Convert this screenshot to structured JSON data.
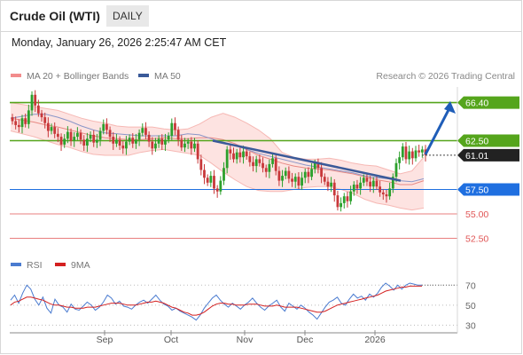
{
  "header": {
    "title": "Crude Oil (WTI)",
    "timeframe": "DAILY",
    "datetime": "Monday, January 26, 2026 2:25:47 AM CET"
  },
  "legend": {
    "bollinger_label": "MA 20 + Bollinger Bands",
    "bollinger_color": "#f28c8c",
    "ma50_label": "MA 50",
    "ma50_color": "#3a5a99",
    "copyright": "Research © 2026 Trading Central"
  },
  "rsi_legend": {
    "rsi_label": "RSI",
    "rsi_color": "#4a7bd0",
    "ma_label": "9MA",
    "ma_color": "#d42020"
  },
  "chart_data": [
    {
      "type": "candlestick",
      "title": "Crude Oil (WTI)",
      "y_range": [
        51.0,
        68.0
      ],
      "x_tick_labels": [
        "Sep",
        "Oct",
        "Nov",
        "Dec",
        "2026"
      ],
      "levels": [
        {
          "value": 66.4,
          "label": "66.40",
          "kind": "resistance",
          "color": "#55a51c"
        },
        {
          "value": 62.5,
          "label": "62.50",
          "kind": "resistance",
          "color": "#55a51c"
        },
        {
          "value": 61.01,
          "label": "61.01",
          "kind": "last-price",
          "color": "#222222"
        },
        {
          "value": 57.5,
          "label": "57.50",
          "kind": "pivot",
          "color": "#1f6fe0"
        },
        {
          "value": 55.0,
          "label": "55.00",
          "kind": "support",
          "color": "#e05555"
        },
        {
          "value": 52.5,
          "label": "52.50",
          "kind": "support",
          "color": "#e05555"
        }
      ],
      "candles": [
        64.5,
        64.1,
        63.9,
        64.8,
        64.2,
        65.6,
        67.2,
        66.1,
        65.3,
        64.9,
        64.3,
        63.5,
        63.9,
        63.2,
        62.9,
        62.1,
        62.7,
        63.4,
        62.5,
        62.9,
        63.3,
        62.6,
        62.0,
        62.7,
        63.1,
        62.3,
        62.6,
        63.5,
        64.2,
        63.6,
        62.9,
        62.2,
        62.6,
        62.0,
        61.7,
        62.4,
        62.8,
        62.2,
        62.6,
        63.3,
        63.8,
        63.1,
        62.4,
        61.7,
        62.2,
        62.7,
        62.1,
        62.6,
        63.0,
        64.3,
        63.6,
        62.6,
        61.8,
        62.2,
        62.4,
        61.7,
        62.2,
        60.6,
        59.5,
        58.7,
        58.2,
        58.9,
        57.6,
        57.3,
        58.4,
        59.7,
        61.6,
        61.2,
        60.6,
        61.3,
        60.8,
        61.4,
        60.9,
        60.3,
        59.9,
        60.6,
        60.2,
        59.7,
        59.3,
        60.1,
        60.7,
        59.4,
        58.4,
        58.9,
        59.4,
        58.6,
        58.3,
        58.8,
        57.9,
        58.7,
        59.3,
        58.8,
        59.6,
        60.2,
        59.7,
        58.8,
        58.3,
        57.8,
        58.2,
        56.9,
        55.7,
        56.1,
        56.8,
        56.3,
        57.3,
        58.0,
        57.6,
        58.2,
        58.7,
        58.3,
        57.8,
        58.4,
        57.8,
        57.2,
        57.0,
        56.8,
        57.6,
        58.8,
        60.2,
        60.8,
        61.9,
        60.6,
        61.4,
        60.7,
        61.5,
        61.3,
        61.6,
        61.01
      ],
      "ma20_upper": [
        66.4,
        66.2,
        66.0,
        65.8,
        65.6,
        65.2,
        64.8,
        64.5,
        64.3,
        64.0,
        63.9,
        63.9,
        63.9,
        63.7,
        63.6,
        63.7,
        64.2,
        64.9,
        65.3,
        64.9,
        64.3,
        63.6,
        62.7,
        61.3,
        60.8,
        60.6,
        60.6,
        60.7,
        60.5,
        60.2,
        60.0,
        59.9,
        59.5,
        59.1,
        59.4,
        60.8
      ],
      "ma20_mid": [
        64.8,
        64.6,
        64.4,
        64.1,
        63.9,
        63.6,
        63.3,
        63.0,
        62.8,
        62.7,
        62.6,
        62.6,
        62.7,
        62.8,
        62.7,
        62.7,
        62.8,
        62.8,
        62.6,
        62.2,
        61.6,
        61.0,
        60.6,
        60.2,
        59.9,
        59.7,
        59.6,
        59.5,
        59.3,
        59.1,
        58.8,
        58.5,
        58.3,
        58.0,
        58.0,
        58.4
      ],
      "ma20_lower": [
        63.5,
        63.2,
        62.9,
        62.5,
        62.1,
        61.8,
        61.4,
        61.1,
        61.0,
        61.0,
        61.0,
        61.3,
        61.5,
        61.6,
        61.4,
        61.2,
        61.0,
        60.2,
        59.3,
        58.5,
        57.8,
        57.4,
        57.3,
        57.3,
        57.5,
        57.7,
        57.8,
        57.8,
        57.5,
        57.1,
        56.5,
        56.1,
        55.9,
        55.6,
        55.4,
        55.6
      ],
      "ma50": [
        64.8,
        65.0,
        65.2,
        65.2,
        64.9,
        64.5,
        64.0,
        63.6,
        63.3,
        63.2,
        63.1,
        63.0,
        63.0,
        63.0,
        63.0,
        63.2,
        63.1,
        62.7,
        62.3,
        62.0,
        61.6,
        61.2,
        60.9,
        60.6,
        60.3,
        60.0,
        59.8,
        59.6,
        59.4,
        59.2,
        58.9,
        58.7,
        58.6,
        58.4,
        58.3,
        58.6
      ],
      "trendline": {
        "from": 62.5,
        "to": 58.4
      },
      "forecast_arrow": {
        "from": 61.1,
        "to": 66.0
      }
    },
    {
      "type": "line",
      "title": "RSI",
      "y_range": [
        25,
        80
      ],
      "y_tick_labels": [
        "70",
        "50",
        "30"
      ],
      "series": [
        {
          "name": "RSI",
          "values": [
            55,
            60,
            52,
            62,
            70,
            66,
            56,
            50,
            58,
            47,
            42,
            56,
            50,
            48,
            43,
            51,
            46,
            45,
            49,
            53,
            50,
            45,
            48,
            53,
            60,
            57,
            51,
            54,
            49,
            48,
            46,
            50,
            53,
            55,
            52,
            56,
            60,
            55,
            51,
            49,
            45,
            47,
            44,
            42,
            40,
            38,
            35,
            40,
            47,
            52,
            57,
            60,
            55,
            51,
            48,
            52,
            49,
            46,
            50,
            53,
            57,
            52,
            48,
            45,
            49,
            52,
            55,
            48,
            44,
            52,
            49,
            46,
            50,
            47,
            43,
            40,
            36,
            42,
            48,
            53,
            55,
            58,
            52,
            50,
            56,
            61,
            57,
            59,
            55,
            61,
            58,
            62,
            68,
            72,
            69,
            65,
            70,
            66,
            70,
            72,
            71,
            70,
            70
          ]
        },
        {
          "name": "9MA",
          "values": [
            50,
            53,
            54,
            56,
            58,
            58,
            57,
            56,
            55,
            53,
            51,
            50,
            50,
            49,
            48,
            48,
            47,
            47,
            47,
            48,
            48,
            48,
            49,
            50,
            51,
            52,
            52,
            52,
            51,
            50,
            50,
            50,
            51,
            52,
            53,
            53,
            54,
            53,
            52,
            50,
            48,
            47,
            45,
            43,
            42,
            40,
            40,
            41,
            43,
            46,
            49,
            51,
            52,
            52,
            51,
            51,
            50,
            50,
            50,
            51,
            51,
            51,
            50,
            49,
            49,
            49,
            50,
            49,
            48,
            48,
            48,
            48,
            47,
            46,
            45,
            44,
            43,
            43,
            44,
            46,
            48,
            50,
            51,
            52,
            53,
            54,
            55,
            56,
            57,
            58,
            59,
            60,
            62,
            64,
            65,
            66,
            67,
            68,
            68,
            69,
            69,
            69,
            69
          ]
        }
      ]
    }
  ]
}
